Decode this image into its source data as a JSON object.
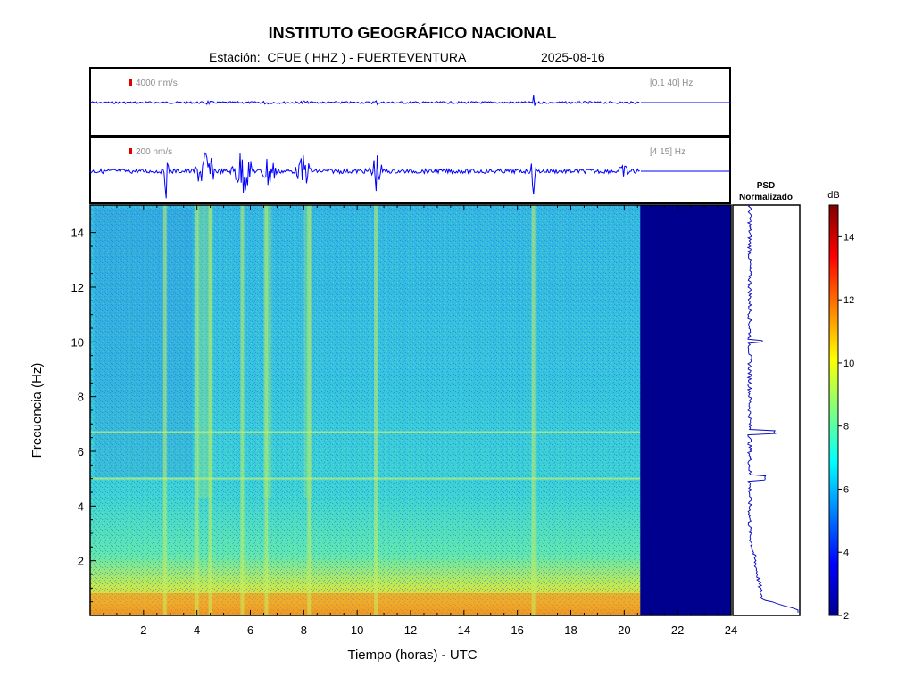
{
  "header": {
    "title": "INSTITUTO GEOGRÁFICO NACIONAL",
    "station_prefix": "Estación:",
    "station": "CFUE ( HHZ ) - FUERTEVENTURA",
    "date": "2025-08-16"
  },
  "traces": [
    {
      "scale_label": "4000 nm/s",
      "band_label": "[0.1 40] Hz"
    },
    {
      "scale_label": "200 nm/s",
      "band_label": "[4 15] Hz"
    }
  ],
  "psd": {
    "title_line1": "PSD",
    "title_line2": "Normalizado"
  },
  "colorbar": {
    "unit": "dB",
    "ticks": [
      2,
      4,
      6,
      8,
      10,
      12,
      14
    ],
    "range": [
      2,
      15
    ],
    "colormap": "jet"
  },
  "colors": {
    "trace": "#0000ff",
    "no_data": "#00008f",
    "frame": "#000000",
    "marker": "#e00000"
  },
  "chart_data": {
    "type": "heatmap",
    "xlabel": "Tiempo (horas) - UTC",
    "ylabel": "Frecuencia  (Hz)",
    "xlim": [
      0,
      24
    ],
    "ylim": [
      0,
      15
    ],
    "xticks": [
      2,
      4,
      6,
      8,
      10,
      12,
      14,
      16,
      18,
      20,
      22,
      24
    ],
    "yticks": [
      2,
      4,
      6,
      8,
      10,
      12,
      14
    ],
    "data_end_hour": 20.6,
    "events_hours": [
      2.8,
      4.0,
      4.5,
      5.7,
      6.6,
      8.2,
      10.7,
      16.6
    ],
    "harmonic_lines_hz": [
      5.0,
      6.7
    ]
  }
}
